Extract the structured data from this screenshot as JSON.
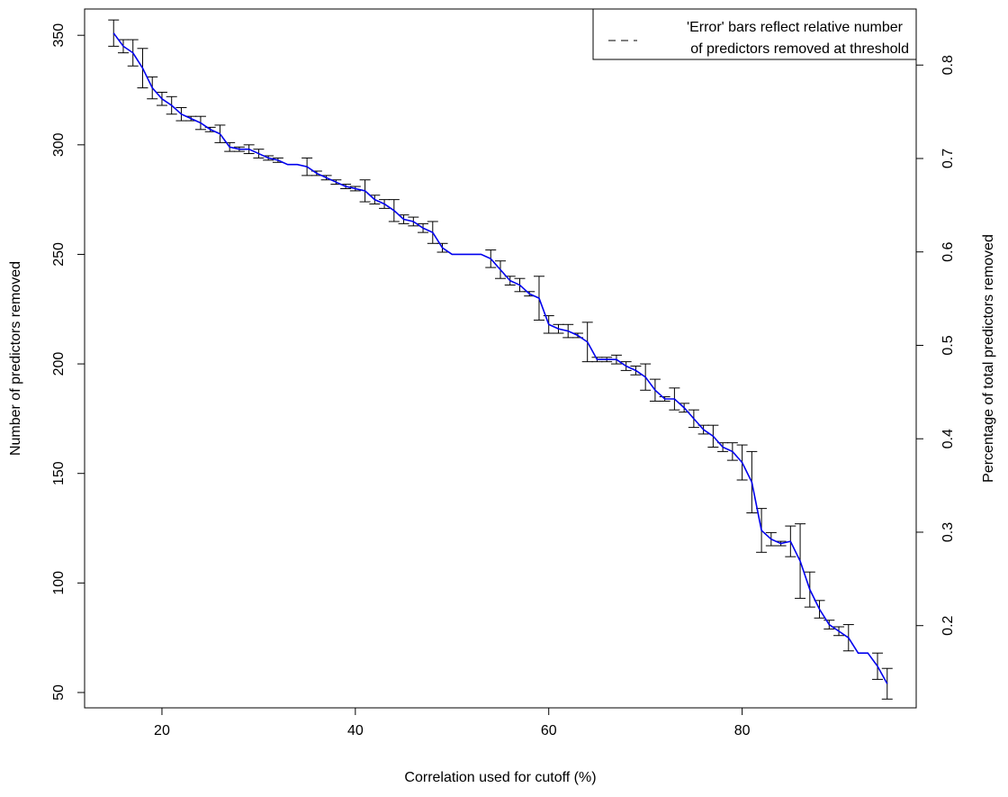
{
  "chart_data": {
    "type": "line",
    "xlabel": "Correlation used for cutoff (%)",
    "ylabel": "Number of predictors removed",
    "y2label": "Percentage of total predictors removed",
    "xlim": [
      12,
      98
    ],
    "ylim": [
      43,
      362
    ],
    "y2lim": [
      0.112,
      0.86
    ],
    "x_ticks": [
      20,
      40,
      60,
      80
    ],
    "y_ticks": [
      50,
      100,
      150,
      200,
      250,
      300,
      350
    ],
    "y2_ticks": [
      0.2,
      0.3,
      0.4,
      0.5,
      0.6,
      0.7,
      0.8
    ],
    "grid": false,
    "line_color": "#0000ee",
    "error_bar_color": "#000000",
    "legend": {
      "position": "top-right",
      "lines": [
        "'Error' bars reflect relative number",
        "of predictors removed at threshold"
      ]
    },
    "series": [
      {
        "x": [
          15,
          16,
          17,
          18,
          19,
          20,
          21,
          22,
          23,
          24,
          25,
          26,
          27,
          28,
          29,
          30,
          31,
          32,
          33,
          34,
          35,
          36,
          37,
          38,
          39,
          40,
          41,
          42,
          43,
          44,
          45,
          46,
          47,
          48,
          49,
          50,
          51,
          52,
          53,
          54,
          55,
          56,
          57,
          58,
          59,
          60,
          61,
          62,
          63,
          64,
          65,
          66,
          67,
          68,
          69,
          70,
          71,
          72,
          73,
          74,
          75,
          76,
          77,
          78,
          79,
          80,
          81,
          82,
          83,
          84,
          85,
          86,
          87,
          88,
          89,
          90,
          91,
          92,
          93,
          94,
          95
        ],
        "y": [
          351,
          345,
          342,
          335,
          326,
          321,
          318,
          314,
          312,
          310,
          307,
          305,
          299,
          298,
          298,
          296,
          294,
          293,
          291,
          291,
          290,
          287,
          285,
          283,
          281,
          280,
          279,
          275,
          273,
          270,
          266,
          265,
          262,
          260,
          253,
          250,
          250,
          250,
          250,
          248,
          243,
          238,
          236,
          232,
          230,
          218,
          216,
          215,
          213,
          210,
          202,
          202,
          202,
          199,
          197,
          194,
          188,
          184,
          184,
          180,
          175,
          170,
          167,
          162,
          160,
          155,
          146,
          124,
          120,
          118,
          119,
          110,
          97,
          88,
          81,
          78,
          75,
          68,
          68,
          62,
          54
        ],
        "err": [
          6,
          3,
          6,
          9,
          5,
          3,
          4,
          3,
          1,
          3,
          1,
          4,
          2,
          1,
          2,
          2,
          1,
          1,
          0,
          0,
          4,
          1,
          1,
          1,
          1,
          1,
          5,
          2,
          2,
          5,
          2,
          2,
          2,
          5,
          2,
          0,
          0,
          0,
          0,
          4,
          4,
          2,
          3,
          1,
          10,
          4,
          2,
          3,
          1,
          9,
          1,
          1,
          2,
          2,
          2,
          6,
          5,
          1,
          5,
          2,
          4,
          2,
          5,
          2,
          4,
          8,
          14,
          10,
          3,
          1,
          7,
          17,
          8,
          4,
          2,
          2,
          6,
          0,
          0,
          6,
          7
        ]
      }
    ]
  }
}
